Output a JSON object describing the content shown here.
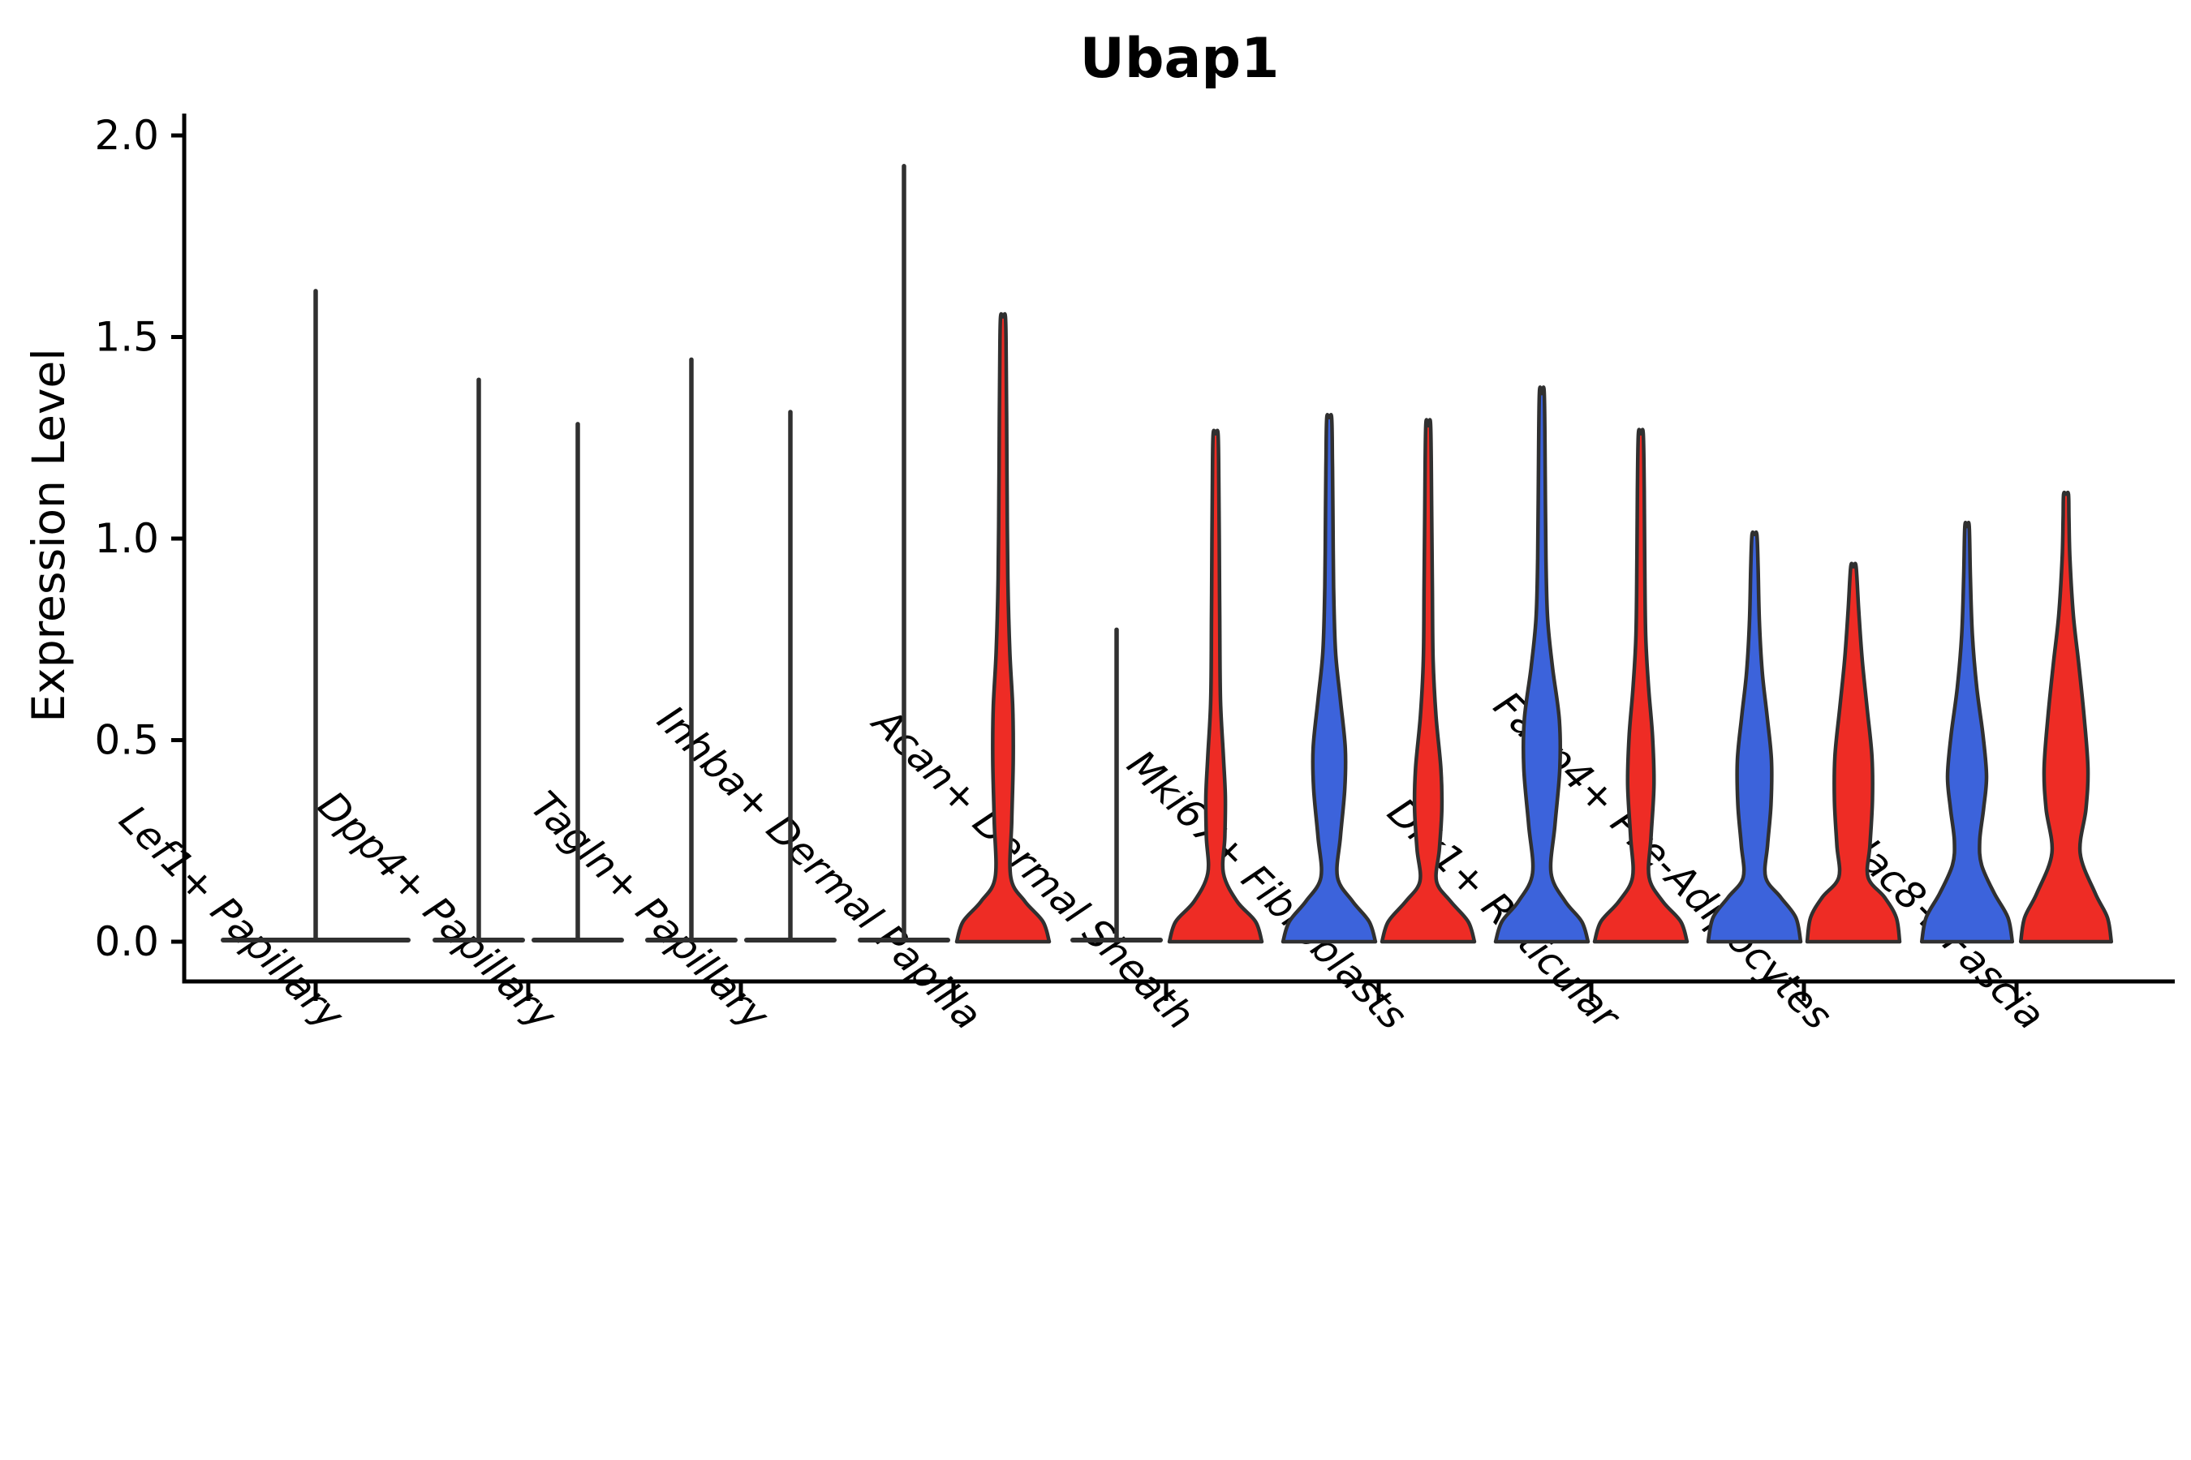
{
  "chart_data": {
    "type": "violin",
    "title": "Ubap1",
    "ylabel": "Expression Level",
    "xlabel": "",
    "ylim": [
      0.0,
      2.0
    ],
    "yticks": [
      "0.0",
      "0.5",
      "1.0",
      "1.5",
      "2.0"
    ],
    "ytick_values": [
      0.0,
      0.5,
      1.0,
      1.5,
      2.0
    ],
    "grid": "off",
    "legend": "none",
    "categories": [
      "Lef1+ Papillary",
      "Dpp4+ Papillary",
      "Tagln+ Papillary",
      "Inhba+ Dermal Papilla",
      "Acan+ Dermal Sheath",
      "Mki67+ Fibroblasts",
      "Dlk1+ Reticular",
      "Fabp4+ Pre-Adipocytes",
      "Plac8+ Fascia"
    ],
    "colors": {
      "split_blue": "#3C63DB",
      "split_red": "#EE2C25",
      "outline": "#303030",
      "axis": "#000000"
    },
    "violins": [
      {
        "category": "Lef1+ Papillary",
        "parts": [
          {
            "pos": "full",
            "fill": "none",
            "collapsed": true,
            "max": 1.62
          }
        ]
      },
      {
        "category": "Dpp4+ Papillary",
        "parts": [
          {
            "pos": "left",
            "fill": "none",
            "collapsed": true,
            "max": 1.4
          },
          {
            "pos": "right",
            "fill": "none",
            "collapsed": true,
            "max": 1.29
          }
        ]
      },
      {
        "category": "Tagln+ Papillary",
        "parts": [
          {
            "pos": "left",
            "fill": "none",
            "collapsed": true,
            "max": 1.45
          },
          {
            "pos": "right",
            "fill": "none",
            "collapsed": true,
            "max": 1.32
          }
        ]
      },
      {
        "category": "Inhba+ Dermal Papilla",
        "parts": [
          {
            "pos": "left",
            "fill": "none",
            "collapsed": true,
            "max": 1.93
          },
          {
            "pos": "right",
            "fill": "red",
            "collapsed": false,
            "max": 1.55,
            "shape": [
              [
                0,
                0.95
              ],
              [
                0.05,
                0.82
              ],
              [
                0.1,
                0.45
              ],
              [
                0.16,
                0.16
              ],
              [
                0.3,
                0.18
              ],
              [
                0.45,
                0.21
              ],
              [
                0.58,
                0.2
              ],
              [
                0.72,
                0.14
              ],
              [
                0.9,
                0.1
              ],
              [
                1.1,
                0.085
              ],
              [
                1.3,
                0.075
              ],
              [
                1.45,
                0.065
              ],
              [
                1.55,
                0.05
              ]
            ]
          }
        ]
      },
      {
        "category": "Acan+ Dermal Sheath",
        "parts": [
          {
            "pos": "left",
            "fill": "none",
            "collapsed": true,
            "max": 0.78
          },
          {
            "pos": "right",
            "fill": "red",
            "collapsed": false,
            "max": 1.26,
            "shape": [
              [
                0,
                0.95
              ],
              [
                0.05,
                0.82
              ],
              [
                0.1,
                0.44
              ],
              [
                0.17,
                0.16
              ],
              [
                0.26,
                0.19
              ],
              [
                0.36,
                0.2
              ],
              [
                0.46,
                0.16
              ],
              [
                0.6,
                0.1
              ],
              [
                0.8,
                0.085
              ],
              [
                1.0,
                0.075
              ],
              [
                1.15,
                0.065
              ],
              [
                1.26,
                0.05
              ]
            ]
          }
        ]
      },
      {
        "category": "Mki67+ Fibroblasts",
        "parts": [
          {
            "pos": "left",
            "fill": "blue",
            "collapsed": false,
            "max": 1.3,
            "shape": [
              [
                0,
                0.95
              ],
              [
                0.05,
                0.82
              ],
              [
                0.1,
                0.48
              ],
              [
                0.16,
                0.17
              ],
              [
                0.26,
                0.23
              ],
              [
                0.38,
                0.32
              ],
              [
                0.48,
                0.33
              ],
              [
                0.6,
                0.23
              ],
              [
                0.72,
                0.13
              ],
              [
                0.88,
                0.09
              ],
              [
                1.08,
                0.075
              ],
              [
                1.2,
                0.065
              ],
              [
                1.3,
                0.05
              ]
            ]
          },
          {
            "pos": "right",
            "fill": "red",
            "collapsed": false,
            "max": 1.28,
            "shape": [
              [
                0,
                0.95
              ],
              [
                0.05,
                0.82
              ],
              [
                0.1,
                0.46
              ],
              [
                0.15,
                0.17
              ],
              [
                0.23,
                0.23
              ],
              [
                0.33,
                0.28
              ],
              [
                0.43,
                0.26
              ],
              [
                0.56,
                0.16
              ],
              [
                0.7,
                0.1
              ],
              [
                0.88,
                0.085
              ],
              [
                1.08,
                0.07
              ],
              [
                1.28,
                0.05
              ]
            ]
          }
        ]
      },
      {
        "category": "Dlk1+ Reticular",
        "parts": [
          {
            "pos": "left",
            "fill": "blue",
            "collapsed": false,
            "max": 1.36,
            "shape": [
              [
                0,
                0.95
              ],
              [
                0.05,
                0.82
              ],
              [
                0.1,
                0.48
              ],
              [
                0.17,
                0.19
              ],
              [
                0.29,
                0.27
              ],
              [
                0.43,
                0.37
              ],
              [
                0.55,
                0.36
              ],
              [
                0.68,
                0.22
              ],
              [
                0.8,
                0.12
              ],
              [
                0.95,
                0.085
              ],
              [
                1.15,
                0.07
              ],
              [
                1.36,
                0.05
              ]
            ]
          },
          {
            "pos": "right",
            "fill": "red",
            "collapsed": false,
            "max": 1.26,
            "shape": [
              [
                0,
                0.95
              ],
              [
                0.05,
                0.82
              ],
              [
                0.1,
                0.45
              ],
              [
                0.16,
                0.17
              ],
              [
                0.26,
                0.21
              ],
              [
                0.39,
                0.27
              ],
              [
                0.51,
                0.24
              ],
              [
                0.63,
                0.16
              ],
              [
                0.76,
                0.1
              ],
              [
                0.95,
                0.08
              ],
              [
                1.12,
                0.07
              ],
              [
                1.26,
                0.05
              ]
            ]
          }
        ]
      },
      {
        "category": "Fabp4+ Pre-Adipocytes",
        "parts": [
          {
            "pos": "left",
            "fill": "blue",
            "collapsed": false,
            "max": 1.01,
            "shape": [
              [
                0,
                0.95
              ],
              [
                0.06,
                0.85
              ],
              [
                0.11,
                0.54
              ],
              [
                0.16,
                0.23
              ],
              [
                0.24,
                0.27
              ],
              [
                0.34,
                0.34
              ],
              [
                0.45,
                0.35
              ],
              [
                0.56,
                0.26
              ],
              [
                0.67,
                0.16
              ],
              [
                0.8,
                0.1
              ],
              [
                0.93,
                0.075
              ],
              [
                1.01,
                0.05
              ]
            ]
          },
          {
            "pos": "right",
            "fill": "red",
            "collapsed": false,
            "max": 0.93,
            "shape": [
              [
                0,
                0.95
              ],
              [
                0.06,
                0.88
              ],
              [
                0.11,
                0.64
              ],
              [
                0.16,
                0.3
              ],
              [
                0.24,
                0.34
              ],
              [
                0.35,
                0.39
              ],
              [
                0.46,
                0.38
              ],
              [
                0.58,
                0.28
              ],
              [
                0.7,
                0.18
              ],
              [
                0.82,
                0.11
              ],
              [
                0.93,
                0.055
              ]
            ]
          }
        ]
      },
      {
        "category": "Plac8+ Fascia",
        "parts": [
          {
            "pos": "left",
            "fill": "blue",
            "collapsed": false,
            "max": 1.03,
            "shape": [
              [
                0,
                0.93
              ],
              [
                0.06,
                0.84
              ],
              [
                0.12,
                0.56
              ],
              [
                0.19,
                0.3
              ],
              [
                0.25,
                0.26
              ],
              [
                0.33,
                0.34
              ],
              [
                0.41,
                0.4
              ],
              [
                0.51,
                0.33
              ],
              [
                0.63,
                0.2
              ],
              [
                0.76,
                0.11
              ],
              [
                0.9,
                0.07
              ],
              [
                1.03,
                0.045
              ]
            ]
          },
          {
            "pos": "right",
            "fill": "red",
            "collapsed": false,
            "max": 1.11,
            "shape": [
              [
                0,
                0.93
              ],
              [
                0.06,
                0.85
              ],
              [
                0.12,
                0.6
              ],
              [
                0.22,
                0.29
              ],
              [
                0.33,
                0.41
              ],
              [
                0.43,
                0.45
              ],
              [
                0.56,
                0.37
              ],
              [
                0.69,
                0.26
              ],
              [
                0.81,
                0.15
              ],
              [
                0.95,
                0.08
              ],
              [
                1.05,
                0.06
              ],
              [
                1.11,
                0.05
              ]
            ]
          }
        ]
      }
    ]
  }
}
